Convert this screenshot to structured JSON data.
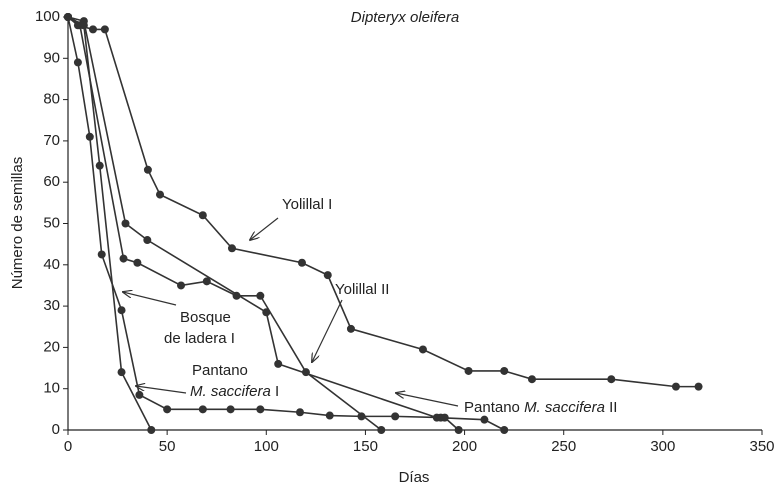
{
  "chart_data": {
    "type": "line",
    "title": "Dipteryx oleifera",
    "x_label": "Días",
    "y_label": "Número de semillas",
    "xlim": [
      0,
      350
    ],
    "xticks": [
      0,
      50,
      100,
      150,
      200,
      250,
      300,
      350
    ],
    "ylim": [
      0,
      100
    ],
    "yticks": [
      0,
      10,
      20,
      30,
      40,
      50,
      60,
      70,
      80,
      90,
      100
    ],
    "color": "#333333",
    "series": [
      {
        "x": [
          0,
          5,
          12.6,
          18.6,
          40.3,
          46.4,
          68,
          82.7,
          118,
          131,
          142.7,
          179,
          202,
          220,
          234,
          274,
          306.6,
          318
        ],
        "values": [
          100,
          98,
          97,
          97,
          63,
          57,
          52,
          44,
          40.5,
          37.5,
          24.5,
          19.5,
          14.3,
          14.3,
          12.3,
          12.3,
          10.5,
          10.5
        ]
      },
      {
        "x": [
          0,
          8,
          29,
          40,
          100,
          106,
          186,
          210,
          220
        ],
        "values": [
          100,
          99,
          50,
          46,
          28.5,
          16,
          3,
          2.5,
          0
        ]
      },
      {
        "x": [
          0,
          6,
          28,
          35,
          57,
          70,
          85,
          97,
          120,
          158
        ],
        "values": [
          100,
          98,
          41.5,
          40.5,
          35,
          36,
          32.5,
          32.5,
          14,
          0
        ]
      },
      {
        "x": [
          0,
          5,
          11,
          17,
          27,
          36,
          50,
          68,
          82,
          97,
          117,
          132,
          148,
          165,
          188,
          190,
          197
        ],
        "values": [
          100,
          89,
          71,
          42.5,
          29,
          8.5,
          5,
          5,
          5,
          5,
          4.3,
          3.5,
          3.3,
          3.3,
          3,
          3,
          0
        ]
      },
      {
        "x": [
          0,
          8,
          16,
          27,
          42
        ],
        "values": [
          100,
          98,
          64,
          14,
          0
        ]
      }
    ],
    "annotations": [
      {
        "lines": [
          [
            {
              "text": "Yolillal I",
              "italic": false
            }
          ]
        ]
      },
      {
        "lines": [
          [
            {
              "text": "Yolillal II",
              "italic": false
            }
          ]
        ]
      },
      {
        "lines": [
          [
            {
              "text": "Bosque",
              "italic": false
            }
          ],
          [
            {
              "text": "de ladera I",
              "italic": false
            }
          ]
        ]
      },
      {
        "lines": [
          [
            {
              "text": "Pantano",
              "italic": false
            }
          ],
          [
            {
              "text": "M. saccifera",
              "italic": true
            },
            {
              "text": " I",
              "italic": false
            }
          ]
        ]
      },
      {
        "lines": [
          [
            {
              "text": "Pantano ",
              "italic": false
            },
            {
              "text": "M. saccifera",
              "italic": true
            },
            {
              "text": " II",
              "italic": false
            }
          ]
        ]
      }
    ]
  }
}
